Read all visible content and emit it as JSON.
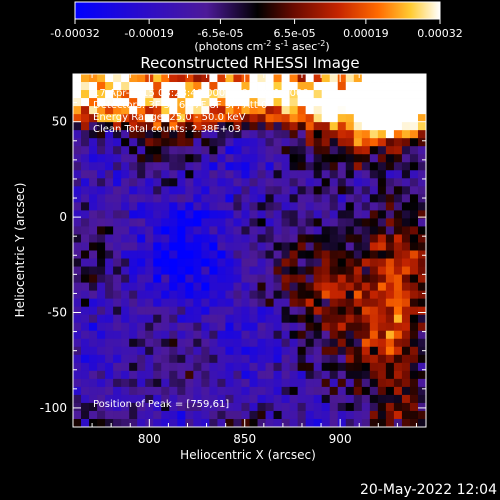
{
  "colorbar": {
    "ticks": [
      "-0.00032",
      "-0.00019",
      "-6.5e-05",
      "6.5e-05",
      "0.00019",
      "0.00032"
    ],
    "tick_values": [
      -0.00032,
      -0.00019,
      -6.5e-05,
      6.5e-05,
      0.00019,
      0.00032
    ],
    "range": [
      -0.00032,
      0.00032
    ],
    "unit_label_parts": {
      "open": "(photons cm",
      "exp1": "-2",
      "s": " s",
      "exp2": "-1",
      "asec": " asec",
      "exp3": "-2",
      "close": ")"
    },
    "colors": [
      "#0000ff",
      "#2a0bcc",
      "#4d1a99",
      "#000000",
      "#6a0a00",
      "#c42400",
      "#ff6a00",
      "#ffcc33",
      "#ffffff"
    ]
  },
  "chart_data": {
    "type": "heatmap",
    "title": "Reconstructed RHESSI Image",
    "xlabel": "Heliocentric X (arcsec)",
    "ylabel": "Heliocentric Y (arcsec)",
    "xlim": [
      760,
      945
    ],
    "ylim": [
      -110,
      75
    ],
    "x_ticks": [
      800,
      850,
      900
    ],
    "y_ticks": [
      50,
      0,
      -50,
      -100
    ],
    "annotations": [
      "17-Apr-2015 08:28:40.000 to 08:28:16.000",
      "Detectors: 3F 5F 6F 7F 8F 9F, Att 0",
      "Energy Range: 25.0 - 50.0 keV",
      "Clean    Total counts: 2.38E+03"
    ],
    "peak_label": "Position of Peak = [759,61]",
    "peak": [
      759,
      61
    ]
  },
  "footer": {
    "timestamp": "20-May-2022 12:04"
  }
}
